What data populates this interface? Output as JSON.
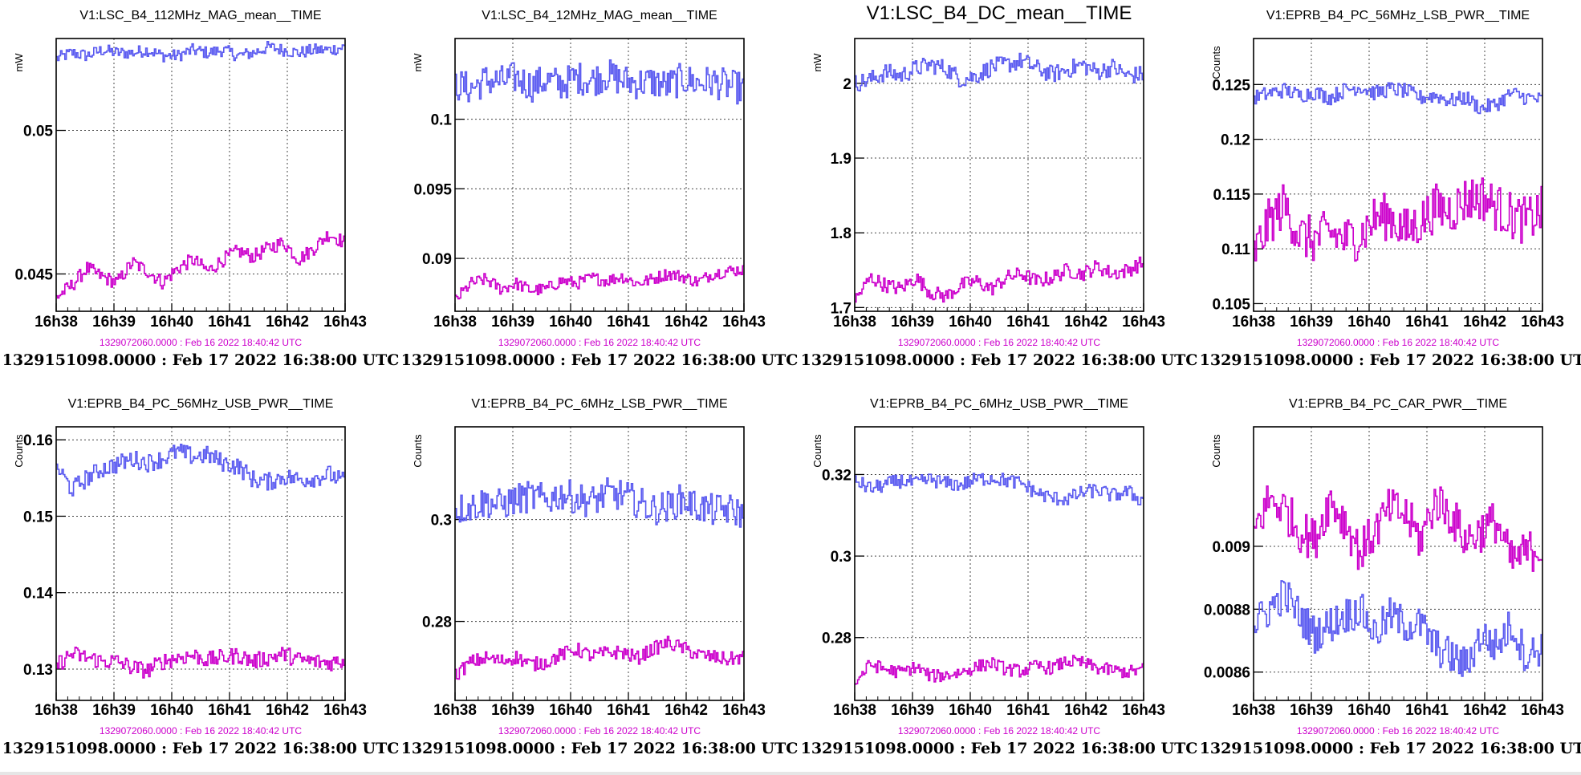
{
  "timestamps": {
    "reference": "1329072060.0000 : Feb 16 2022 18:40:42 UTC",
    "main": "1329151098.0000 : Feb 17 2022 16:38:00 UTC"
  },
  "colors": {
    "blue": "#5a5af0",
    "magenta": "#cc00cc"
  },
  "chart_data": [
    {
      "type": "line",
      "title": "V1:LSC_B4_112MHz_MAG_mean__TIME",
      "ylabel": "mW",
      "x_ticks": [
        "16h38",
        "16h39",
        "16h40",
        "16h41",
        "16h42",
        "16h43"
      ],
      "ylim": [
        0.0437,
        0.0532
      ],
      "y_ticks": [
        {
          "v": 0.045,
          "label": "0.045"
        },
        {
          "v": 0.05,
          "label": "0.05"
        }
      ],
      "series": [
        {
          "color": "blue",
          "values": [
            0.0525,
            0.0527,
            0.0526,
            0.0528,
            0.0527,
            0.0527,
            0.0528,
            0.0526,
            0.0526,
            0.0528,
            0.0527,
            0.0528,
            0.0526,
            0.0527,
            0.0529,
            0.0528,
            0.0527,
            0.0528,
            0.0528,
            0.0529
          ],
          "noise": 0.00022
        },
        {
          "color": "magenta",
          "values": [
            0.0442,
            0.0446,
            0.0452,
            0.0449,
            0.0447,
            0.0454,
            0.0451,
            0.0447,
            0.0452,
            0.0455,
            0.0451,
            0.0455,
            0.0458,
            0.0456,
            0.0459,
            0.0461,
            0.0455,
            0.0459,
            0.0464,
            0.0461
          ],
          "noise": 0.00025
        }
      ]
    },
    {
      "type": "line",
      "title": "V1:LSC_B4_12MHz_MAG_mean__TIME",
      "ylabel": "mW",
      "x_ticks": [
        "16h38",
        "16h39",
        "16h40",
        "16h41",
        "16h42",
        "16h43"
      ],
      "ylim": [
        0.0862,
        0.1058
      ],
      "y_ticks": [
        {
          "v": 0.09,
          "label": "0.09"
        },
        {
          "v": 0.095,
          "label": "0.095"
        },
        {
          "v": 0.1,
          "label": "0.1"
        }
      ],
      "series": [
        {
          "color": "blue",
          "values": [
            0.1025,
            0.1022,
            0.1028,
            0.1027,
            0.103,
            0.1024,
            0.1028,
            0.1025,
            0.103,
            0.1028,
            0.1032,
            0.1028,
            0.1026,
            0.1027,
            0.1024,
            0.1029,
            0.1026,
            0.1027,
            0.1024,
            0.1022
          ],
          "noise": 0.0012
        },
        {
          "color": "magenta",
          "values": [
            0.087,
            0.0882,
            0.0885,
            0.0878,
            0.0882,
            0.0877,
            0.0878,
            0.0884,
            0.0882,
            0.0886,
            0.0884,
            0.0887,
            0.0882,
            0.0885,
            0.0889,
            0.0887,
            0.0883,
            0.0889,
            0.0891,
            0.0892
          ],
          "noise": 0.00045
        }
      ]
    },
    {
      "type": "line",
      "title": "V1:LSC_B4_DC_mean__TIME",
      "ylabel": "mW",
      "x_ticks": [
        "16h38",
        "16h39",
        "16h40",
        "16h41",
        "16h42",
        "16h43"
      ],
      "ylim": [
        1.695,
        2.06
      ],
      "y_ticks": [
        {
          "v": 1.7,
          "label": "1.7"
        },
        {
          "v": 1.8,
          "label": "1.8"
        },
        {
          "v": 1.9,
          "label": "1.9"
        },
        {
          "v": 2.0,
          "label": "2"
        }
      ],
      "series": [
        {
          "color": "blue",
          "values": [
            2.0,
            2.005,
            2.015,
            2.01,
            2.02,
            2.025,
            2.02,
            2.005,
            2.01,
            2.022,
            2.025,
            2.03,
            2.02,
            2.012,
            2.018,
            2.025,
            2.015,
            2.022,
            2.01,
            2.012
          ],
          "noise": 0.012
        },
        {
          "color": "magenta",
          "values": [
            1.71,
            1.74,
            1.73,
            1.725,
            1.74,
            1.72,
            1.715,
            1.73,
            1.735,
            1.725,
            1.74,
            1.745,
            1.735,
            1.74,
            1.75,
            1.745,
            1.755,
            1.745,
            1.75,
            1.76
          ],
          "noise": 0.01
        }
      ]
    },
    {
      "type": "line",
      "title": "V1:EPRB_B4_PC_56MHz_LSB_PWR__TIME",
      "ylabel": "Counts",
      "x_ticks": [
        "16h38",
        "16h39",
        "16h40",
        "16h41",
        "16h42",
        "16h43"
      ],
      "ylim": [
        0.1043,
        0.1292
      ],
      "y_ticks": [
        {
          "v": 0.105,
          "label": "0.105"
        },
        {
          "v": 0.11,
          "label": "0.11"
        },
        {
          "v": 0.115,
          "label": "0.115"
        },
        {
          "v": 0.12,
          "label": "0.12"
        },
        {
          "v": 0.125,
          "label": "0.125"
        }
      ],
      "series": [
        {
          "color": "blue",
          "values": [
            0.1238,
            0.1242,
            0.1245,
            0.124,
            0.1243,
            0.1238,
            0.1245,
            0.1248,
            0.1242,
            0.1246,
            0.1244,
            0.1238,
            0.124,
            0.1235,
            0.1238,
            0.1228,
            0.1232,
            0.1242,
            0.1238,
            0.1236
          ],
          "noise": 0.0007
        },
        {
          "color": "magenta",
          "values": [
            0.1095,
            0.1125,
            0.114,
            0.1112,
            0.1108,
            0.1115,
            0.1108,
            0.1112,
            0.1128,
            0.113,
            0.1115,
            0.1125,
            0.1138,
            0.1135,
            0.1145,
            0.1148,
            0.1138,
            0.113,
            0.1125,
            0.1135
          ],
          "noise": 0.0022
        }
      ]
    },
    {
      "type": "line",
      "title": "V1:EPRB_B4_PC_56MHz_USB_PWR__TIME",
      "ylabel": "Counts",
      "x_ticks": [
        "16h38",
        "16h39",
        "16h40",
        "16h41",
        "16h42",
        "16h43"
      ],
      "ylim": [
        0.1259,
        0.1617
      ],
      "y_ticks": [
        {
          "v": 0.13,
          "label": "0.13"
        },
        {
          "v": 0.14,
          "label": "0.14"
        },
        {
          "v": 0.15,
          "label": "0.15"
        },
        {
          "v": 0.16,
          "label": "0.16"
        }
      ],
      "series": [
        {
          "color": "blue",
          "values": [
            0.1565,
            0.1535,
            0.155,
            0.1562,
            0.1568,
            0.1575,
            0.157,
            0.1575,
            0.1585,
            0.1578,
            0.158,
            0.157,
            0.1565,
            0.1548,
            0.1545,
            0.1552,
            0.1548,
            0.155,
            0.1555,
            0.1545
          ],
          "noise": 0.0012
        },
        {
          "color": "magenta",
          "values": [
            0.1305,
            0.132,
            0.1315,
            0.131,
            0.131,
            0.1302,
            0.1298,
            0.131,
            0.1315,
            0.1318,
            0.1312,
            0.1315,
            0.1318,
            0.131,
            0.1315,
            0.132,
            0.1312,
            0.131,
            0.1308,
            0.1312
          ],
          "noise": 0.0011
        }
      ]
    },
    {
      "type": "line",
      "title": "V1:EPRB_B4_PC_6MHz_LSB_PWR__TIME",
      "ylabel": "Counts",
      "x_ticks": [
        "16h38",
        "16h39",
        "16h40",
        "16h41",
        "16h42",
        "16h43"
      ],
      "ylim": [
        0.2645,
        0.3182
      ],
      "y_ticks": [
        {
          "v": 0.28,
          "label": "0.28"
        },
        {
          "v": 0.3,
          "label": "0.3"
        }
      ],
      "series": [
        {
          "color": "blue",
          "values": [
            0.302,
            0.3025,
            0.3035,
            0.3028,
            0.304,
            0.3045,
            0.3038,
            0.305,
            0.3042,
            0.3035,
            0.305,
            0.3048,
            0.3035,
            0.302,
            0.3025,
            0.304,
            0.3025,
            0.3018,
            0.302,
            0.3012
          ],
          "noise": 0.0032
        },
        {
          "color": "magenta",
          "values": [
            0.2695,
            0.272,
            0.2728,
            0.2722,
            0.273,
            0.2715,
            0.272,
            0.2735,
            0.2745,
            0.2732,
            0.2738,
            0.274,
            0.2728,
            0.2745,
            0.2758,
            0.2748,
            0.2735,
            0.273,
            0.2725,
            0.273
          ],
          "noise": 0.0014
        }
      ]
    },
    {
      "type": "line",
      "title": "V1:EPRB_B4_PC_6MHz_USB_PWR__TIME",
      "ylabel": "Counts",
      "x_ticks": [
        "16h38",
        "16h39",
        "16h40",
        "16h41",
        "16h42",
        "16h43"
      ],
      "ylim": [
        0.2646,
        0.3317
      ],
      "y_ticks": [
        {
          "v": 0.28,
          "label": "0.28"
        },
        {
          "v": 0.3,
          "label": "0.3"
        },
        {
          "v": 0.32,
          "label": "0.32"
        }
      ],
      "series": [
        {
          "color": "blue",
          "values": [
            0.3185,
            0.3165,
            0.3175,
            0.3185,
            0.3178,
            0.3188,
            0.3178,
            0.3175,
            0.3188,
            0.3192,
            0.3185,
            0.3178,
            0.3155,
            0.3142,
            0.314,
            0.3155,
            0.3162,
            0.3148,
            0.3158,
            0.3135
          ],
          "noise": 0.0018
        },
        {
          "color": "magenta",
          "values": [
            0.269,
            0.2735,
            0.2722,
            0.2715,
            0.2728,
            0.2705,
            0.2708,
            0.2715,
            0.2728,
            0.2738,
            0.2722,
            0.2718,
            0.273,
            0.2725,
            0.2742,
            0.2738,
            0.2725,
            0.272,
            0.2715,
            0.2722
          ],
          "noise": 0.0016
        }
      ]
    },
    {
      "type": "line",
      "title": "V1:EPRB_B4_PC_CAR_PWR__TIME",
      "ylabel": "Counts",
      "x_ticks": [
        "16h38",
        "16h39",
        "16h40",
        "16h41",
        "16h42",
        "16h43"
      ],
      "ylim": [
        0.00851,
        0.00938
      ],
      "y_ticks": [
        {
          "v": 0.0086,
          "label": "0.0086"
        },
        {
          "v": 0.0088,
          "label": "0.0088"
        },
        {
          "v": 0.009,
          "label": "0.009"
        }
      ],
      "series": [
        {
          "color": "magenta",
          "values": [
            0.00905,
            0.00915,
            0.00912,
            0.00905,
            0.00902,
            0.00915,
            0.00908,
            0.00898,
            0.00905,
            0.00912,
            0.0091,
            0.00902,
            0.00915,
            0.0091,
            0.00902,
            0.00905,
            0.00908,
            0.00895,
            0.00898,
            0.009
          ],
          "noise": 7e-05
        },
        {
          "color": "blue",
          "values": [
            0.00875,
            0.0088,
            0.00885,
            0.00878,
            0.00872,
            0.00875,
            0.00878,
            0.0088,
            0.00872,
            0.00878,
            0.00875,
            0.00875,
            0.00868,
            0.00865,
            0.00862,
            0.00872,
            0.00868,
            0.00875,
            0.00865,
            0.00868
          ],
          "noise": 6e-05
        }
      ]
    }
  ]
}
